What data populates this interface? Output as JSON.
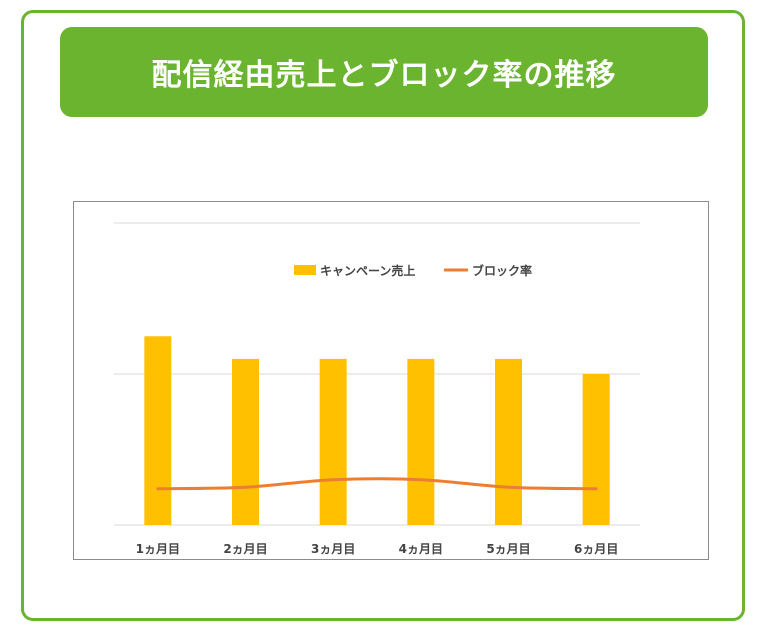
{
  "title": "配信経由売上とブロック率の推移",
  "colors": {
    "frame": "#6ab42f",
    "banner": "#6ab42f",
    "bar": "#ffc000",
    "line": "#ed7d31",
    "grid": "#d9d9d9"
  },
  "chart_data": {
    "type": "bar",
    "categories": [
      "1ヵ月目",
      "2ヵ月目",
      "3ヵ月目",
      "4ヵ月目",
      "5ヵ月目",
      "6ヵ月目"
    ],
    "series": [
      {
        "name": "キャンペーン売上",
        "type": "bar",
        "values": [
          125,
          110,
          110,
          110,
          110,
          100
        ]
      },
      {
        "name": "ブロック率",
        "type": "line",
        "values": [
          24,
          25,
          30,
          30,
          25,
          24
        ]
      }
    ],
    "ylim": [
      0,
      200
    ],
    "grid": true,
    "legend": "top-center",
    "yaxis_labels_shown": false
  }
}
